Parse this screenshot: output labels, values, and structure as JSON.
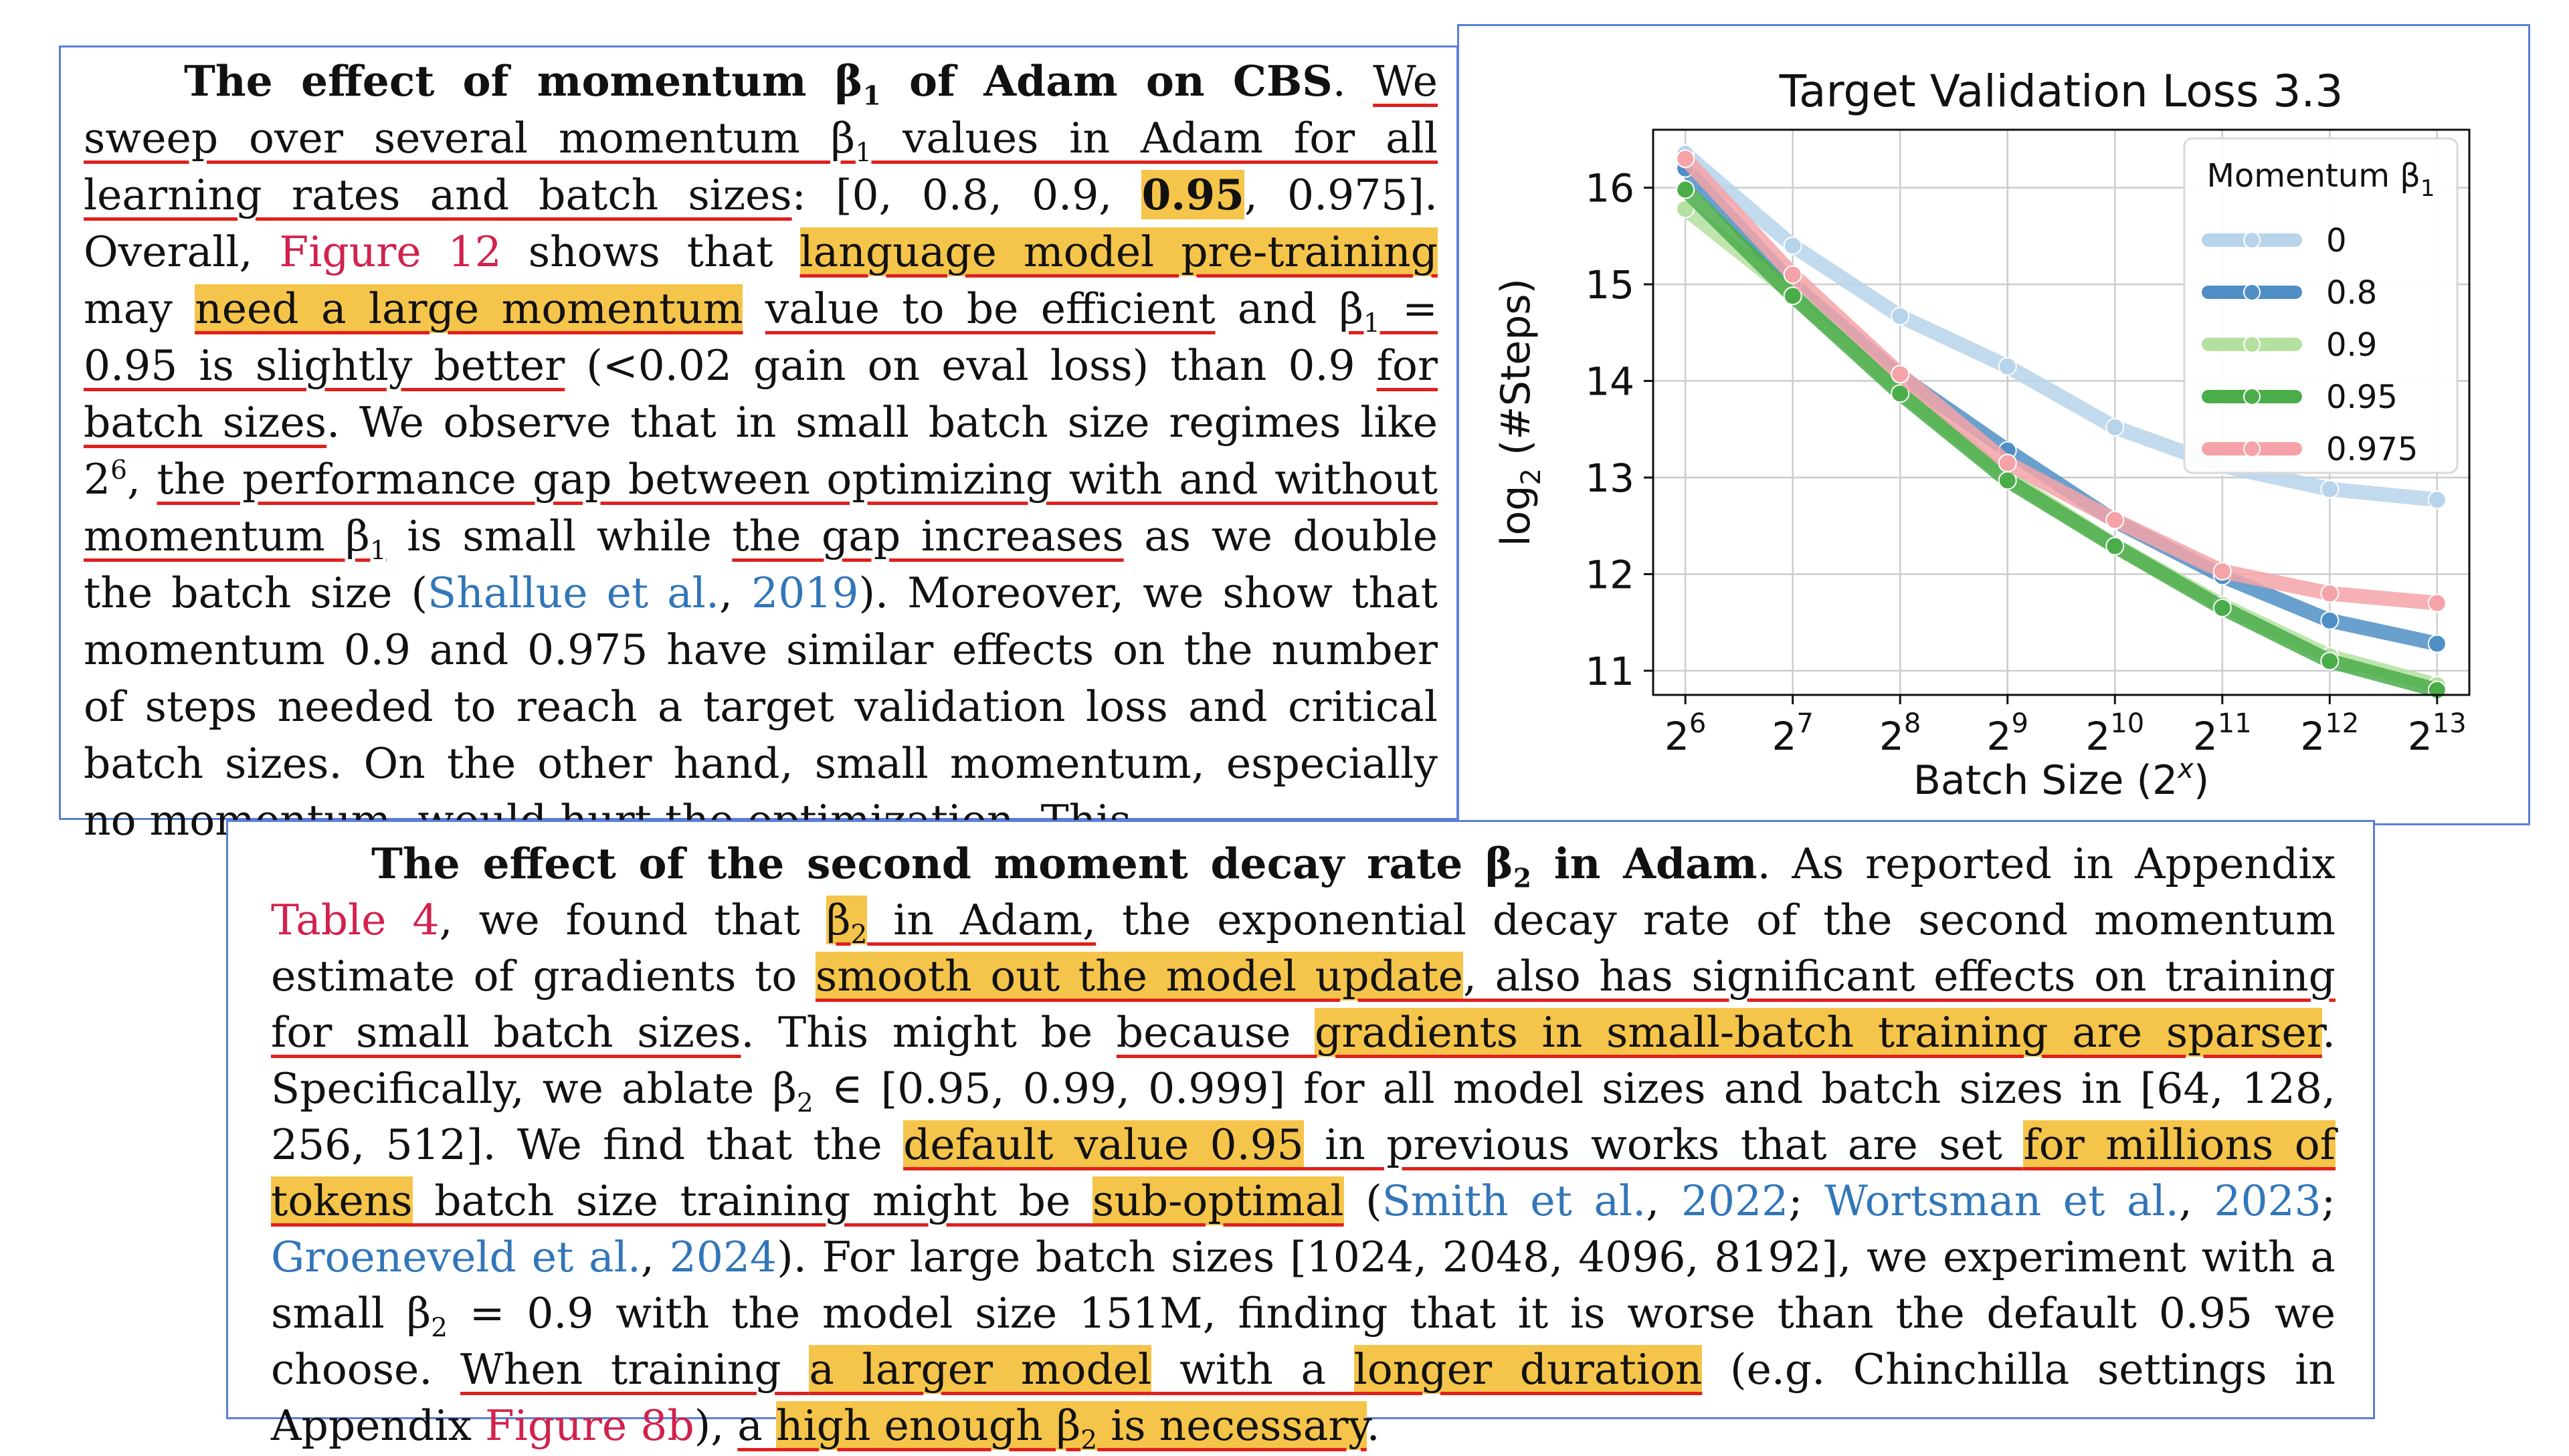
{
  "para1": {
    "heading": "The effect of momentum β",
    "heading_sub": "1",
    "heading_tail": " of Adam on CBS",
    "s1": ". ",
    "u1": "We sweep over several momentum β",
    "u1_sub": "1",
    "u1_tail": " values in Adam for all learning rates and batch sizes",
    "s2": ": [0, 0.8, 0.9, ",
    "bold_val": "0.95",
    "s3": ", 0.975]. Overall, ",
    "ref_fig": "Figure 12",
    "s4": " shows that ",
    "h1": "language model pre-training",
    "s5": " may ",
    "h2": "need a large momentum",
    "u2": "value to be efficient",
    "s6": " and ",
    "u3": "β",
    "u3_sub": "1",
    "u3_tail": " = 0.95 is slightly better",
    "s7": " (<0.02 gain on eval loss) than 0.9 ",
    "u4": "for batch sizes",
    "s8": ". We observe that in small batch size regimes like 2",
    "s8_sup": "6",
    "s9": ", ",
    "u5": "the performance gap between optimizing with and without momentum β",
    "u5_sub": "1",
    "s10": " is small while ",
    "u6": "the gap increases",
    "s11": " as we double the batch size (",
    "ref_shallue": "Shallue et al.",
    "s12": ", ",
    "ref_shallue_year": "2019",
    "s13": ").  Moreover, we show that momentum 0.9 and 0.975 have similar effects on the number of steps needed to reach a target validation loss and critical batch sizes. On the other hand, small momentum, especially no momentum, would hurt the optimization.  This"
  },
  "para2": {
    "heading": "The effect of the second moment decay rate β",
    "heading_sub": "2",
    "heading_tail": " in Adam",
    "s1": ". As reported in Appendix ",
    "ref_table": "Table 4",
    "s2": ", we found that ",
    "u1a": "β",
    "u1a_sub": "2",
    "u1b": " in Adam,",
    "s3": " the exponential decay rate of the second momentum estimate of gradients to ",
    "h1": "smooth out the model update",
    "u2": ", also has significant effects on training for small batch sizes",
    "s4": ". This might be ",
    "u3": "because ",
    "h2": "gradients in small-batch training are sparser",
    "s5": ". Specifically, we ablate β",
    "s5_sub": "2",
    "s5_tail": " ∈ [0.95, 0.99, 0.999] for all model sizes and batch sizes in [64, 128, 256, 512]. We find that the ",
    "h3": "default value 0.95",
    "u4": " in previous works that are set ",
    "h4": "for millions of tokens",
    "u5": " batch size training might be ",
    "h5": "sub-optimal",
    "s6": " (",
    "ref_smith": "Smith et al.",
    "s7": ", ",
    "ref_smith_year": "2022",
    "s8": "; ",
    "ref_wortsman": "Wortsman et al.",
    "s9": ", ",
    "ref_wortsman_year": "2023",
    "s10": "; ",
    "ref_groeneveld": "Groeneveld et al.",
    "s11": ", ",
    "ref_groeneveld_year": "2024",
    "s12": ").  For large batch sizes [1024, 2048, 4096, 8192], we experiment with a small β",
    "s12_sub": "2",
    "s12_tail": " = 0.9 with the model size 151M, finding that it is worse than the default 0.95 we choose. ",
    "u6": "When training ",
    "h6": "a larger model",
    "u7": " with a ",
    "h7": "longer duration",
    "s13": " (e.g. Chinchilla settings in Appendix ",
    "ref_fig8b": "Figure 8b",
    "s14": "), ",
    "u8": "a ",
    "h8": "high enough β",
    "h8_sub": "2",
    "h8_tail": " is necessary",
    "s15": "."
  },
  "chart_data": {
    "type": "line",
    "title": "Target Validation Loss 3.3",
    "xlabel": "Batch Size (2^x)",
    "ylabel": "log2 (#Steps)",
    "x": [
      6,
      7,
      8,
      9,
      10,
      11,
      12,
      13
    ],
    "xtick_labels": [
      "6",
      "7",
      "8",
      "9",
      "10",
      "11",
      "12",
      "13"
    ],
    "yticks": [
      11,
      12,
      13,
      14,
      15,
      16
    ],
    "xlim": [
      5.7,
      13.3
    ],
    "ylim": [
      10.75,
      16.6
    ],
    "grid": true,
    "legend_title": "Momentum β1",
    "legend_position": "top-right",
    "series": [
      {
        "name": "0",
        "color": "#b7d4ea",
        "values": [
          16.35,
          15.4,
          14.67,
          14.15,
          13.52,
          13.12,
          12.88,
          12.77
        ]
      },
      {
        "name": "0.8",
        "color": "#4f8fc6",
        "values": [
          16.2,
          15.0,
          14.05,
          13.28,
          12.55,
          11.98,
          11.52,
          11.28
        ]
      },
      {
        "name": "0.9",
        "color": "#b4e0a0",
        "values": [
          15.78,
          14.9,
          13.9,
          13.0,
          12.3,
          11.68,
          11.15,
          10.85
        ]
      },
      {
        "name": "0.95",
        "color": "#4aad4a",
        "values": [
          15.98,
          14.88,
          13.87,
          12.97,
          12.29,
          11.65,
          11.1,
          10.8
        ]
      },
      {
        "name": "0.975",
        "color": "#f5a3a8",
        "values": [
          16.3,
          15.1,
          14.07,
          13.15,
          12.56,
          12.03,
          11.8,
          11.7
        ]
      }
    ]
  }
}
